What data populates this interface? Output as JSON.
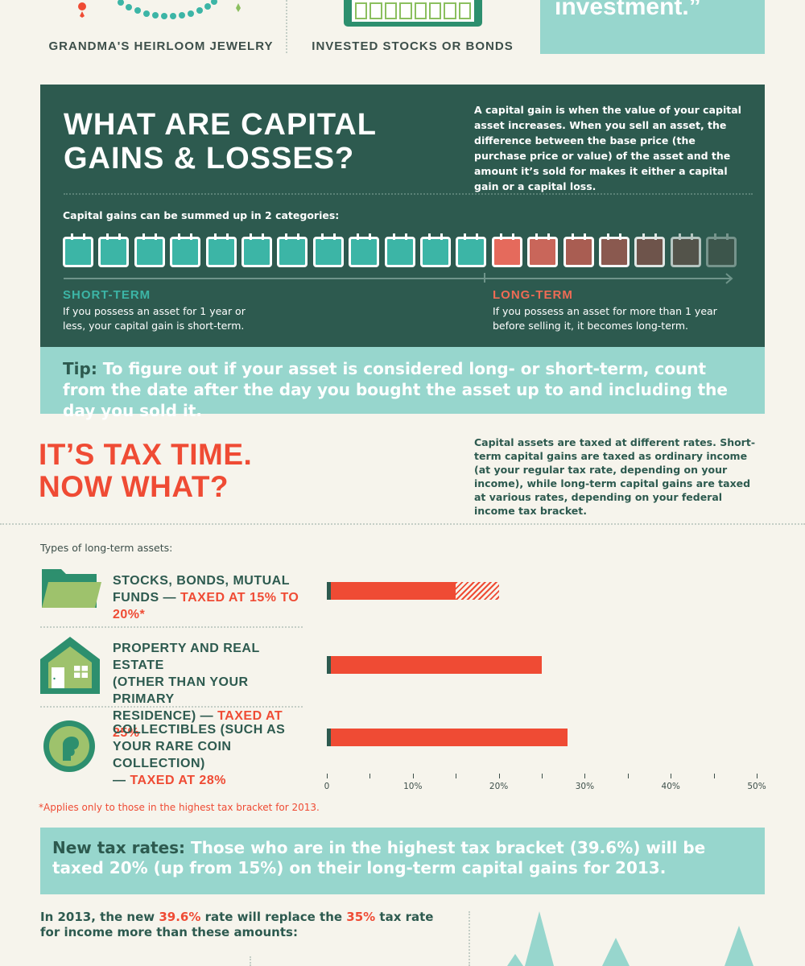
{
  "top": {
    "items": [
      {
        "label": "GRANDMA'S HEIRLOOM JEWELRY",
        "icon": "necklace-icon"
      },
      {
        "label": "INVESTED STOCKS OR BONDS",
        "icon": "stock-certificate-icon"
      }
    ],
    "quote_tail": "investment.”"
  },
  "definition": {
    "title_line1": "WHAT ARE CAPITAL",
    "title_line2": "GAINS & LOSSES?",
    "description": "A capital gain is when the value of your capital asset increases. When you sell an asset, the difference between the base price (the purchase price or value) of the asset and the amount it’s sold for makes it either a capital gain or a capital loss.",
    "categories_intro": "Capital gains can be summed up in 2 categories:",
    "short_term": {
      "label": "SHORT-TERM",
      "description": "If you possess an asset for 1 year or less, your capital gain is short-term."
    },
    "long_term": {
      "label": "LONG-TERM",
      "description": "If you possess an asset for more than 1 year before selling it, it becomes long-term."
    }
  },
  "tip": {
    "lead": "Tip:",
    "text": " To figure out if your asset is considered long- or short-term, count from the date after the day you bought the asset up to and including the day you sold it."
  },
  "tax_time": {
    "title_line1": "IT’S TAX TIME.",
    "title_line2": "NOW WHAT?",
    "description": "Capital assets are taxed at different rates. Short-term capital gains are taxed as ordinary income (at your regular tax rate, depending on your income), while long-term capital gains are taxed at various rates, depending on your federal income tax bracket.",
    "types_intro": "Types of long-term assets:"
  },
  "assets": [
    {
      "name": "STOCKS, BONDS, MUTUAL",
      "name2": "FUNDS — ",
      "rate": "TAXED AT 15% TO 20%*",
      "icon": "folder-icon"
    },
    {
      "name": "PROPERTY AND REAL ESTATE",
      "name2": "(OTHER THAN YOUR PRIMARY",
      "name3": "RESIDENCE) — ",
      "rate": "TAXED AT 25%",
      "icon": "house-icon"
    },
    {
      "name": "COLLECTIBLES (SUCH AS",
      "name2": "YOUR RARE COIN COLLECTION)",
      "name3": "— ",
      "rate": "TAXED AT 28%",
      "icon": "coin-icon"
    }
  ],
  "chart_data": {
    "type": "bar",
    "orientation": "horizontal",
    "categories": [
      "Stocks, bonds, mutual funds",
      "Property and real estate",
      "Collectibles"
    ],
    "series": [
      {
        "values": [
          15,
          25,
          28
        ]
      },
      {
        "values": [
          5,
          0,
          0
        ]
      }
    ],
    "x_ticks": [
      "0",
      "10%",
      "20%",
      "30%",
      "40%",
      "50%"
    ],
    "xlim": [
      0,
      50
    ],
    "grid": false
  },
  "footnote": "*Applies only to those in the highest tax bracket for 2013.",
  "new_rates": {
    "lead": "New tax rates:",
    "text": " Those who are in the highest tax bracket (39.6%) will be taxed 20% (up from 15%) on their long-term capital gains for 2013."
  },
  "bottom": {
    "part1": "In 2013, the new ",
    "rate_new": "39.6%",
    "part2": " rate will replace the ",
    "rate_old": "35%",
    "part3": " tax rate for income more than these amounts:"
  },
  "colors": {
    "dark_green": "#2d5a4f",
    "teal": "#3cb5a6",
    "mint": "#97d6cd",
    "red": "#ef4b34",
    "light_green": "#8bbf5f",
    "bg": "#f6f4ec"
  }
}
